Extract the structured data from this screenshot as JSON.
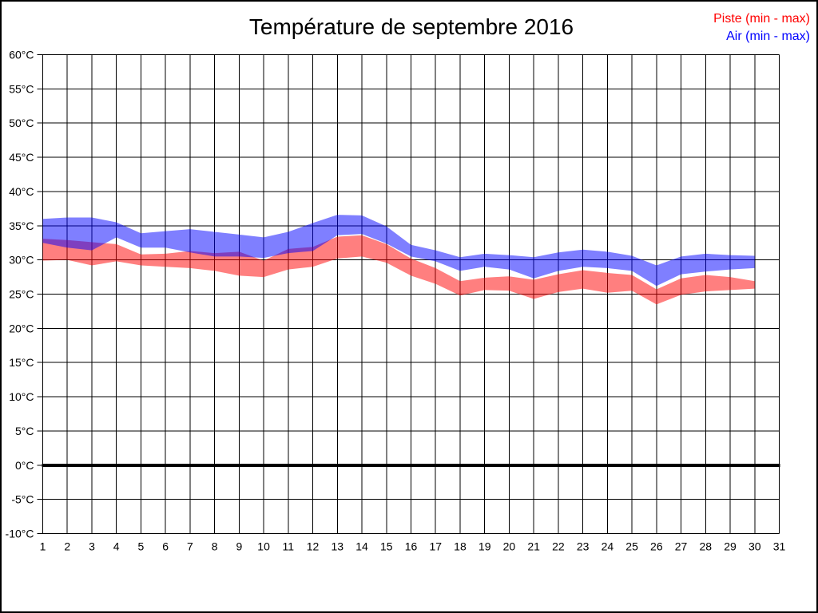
{
  "title": "Température de septembre 2016",
  "legend": {
    "piste": {
      "label": "Piste (min - max)",
      "color": "#ff0000"
    },
    "air": {
      "label": "Air (min - max)",
      "color": "#0000ff"
    }
  },
  "chart_data": {
    "type": "area",
    "subtype": "min-max-band",
    "title": "Température de septembre 2016",
    "xlabel": "",
    "ylabel": "",
    "x_min": 1,
    "x_max": 31,
    "y_min": -10,
    "y_max": 60,
    "y_step": 5,
    "grid": "on",
    "zero_line": true,
    "legend_position": "top-right",
    "x_tick_labels": [
      "1",
      "2",
      "3",
      "4",
      "5",
      "6",
      "7",
      "8",
      "9",
      "10",
      "11",
      "12",
      "13",
      "14",
      "15",
      "16",
      "17",
      "18",
      "19",
      "20",
      "21",
      "22",
      "23",
      "24",
      "25",
      "26",
      "27",
      "28",
      "29",
      "30",
      "31"
    ],
    "y_tick_labels": [
      "60°C",
      "55°C",
      "50°C",
      "45°C",
      "40°C",
      "35°C",
      "30°C",
      "25°C",
      "20°C",
      "15°C",
      "10°C",
      "5°C",
      "0°C",
      "-5°C",
      "-10°C"
    ],
    "days": [
      1,
      2,
      3,
      4,
      5,
      6,
      7,
      8,
      9,
      10,
      11,
      12,
      13,
      14,
      15,
      16,
      17,
      18,
      19,
      20,
      21,
      22,
      23,
      24,
      25,
      26,
      27,
      28,
      29,
      30
    ],
    "series": [
      {
        "name": "Piste (min - max)",
        "fill": "rgba(255,0,0,0.5)",
        "legend_color": "#ff0000",
        "max": [
          33.1,
          32.9,
          32.6,
          32.3,
          30.8,
          30.9,
          31.3,
          31.0,
          31.2,
          29.9,
          31.6,
          31.9,
          33.4,
          33.6,
          32.3,
          30.2,
          28.8,
          26.9,
          27.4,
          27.6,
          27.1,
          27.9,
          28.5,
          28.1,
          27.8,
          25.7,
          27.3,
          27.8,
          27.5,
          26.9
        ],
        "min": [
          29.9,
          30.0,
          29.2,
          29.8,
          29.2,
          29.0,
          28.8,
          28.4,
          27.7,
          27.5,
          28.6,
          29.0,
          30.2,
          30.5,
          29.6,
          27.7,
          26.5,
          24.8,
          25.6,
          25.5,
          24.3,
          25.3,
          25.8,
          25.2,
          25.5,
          23.5,
          24.9,
          25.4,
          25.6,
          25.8
        ]
      },
      {
        "name": "Air (min - max)",
        "fill": "rgba(0,0,255,0.5)",
        "legend_color": "#0000ff",
        "max": [
          36.0,
          36.2,
          36.2,
          35.5,
          33.9,
          34.2,
          34.5,
          34.1,
          33.7,
          33.3,
          34.1,
          35.4,
          36.6,
          36.5,
          34.9,
          32.2,
          31.4,
          30.4,
          30.9,
          30.7,
          30.4,
          31.1,
          31.5,
          31.2,
          30.6,
          29.2,
          30.5,
          30.9,
          30.7,
          30.6
        ],
        "min": [
          32.5,
          31.8,
          31.4,
          33.3,
          31.8,
          31.8,
          31.1,
          30.5,
          30.5,
          30.3,
          31.0,
          31.3,
          33.6,
          33.8,
          32.4,
          30.5,
          29.8,
          28.4,
          29.0,
          28.6,
          27.3,
          28.4,
          29.0,
          28.8,
          28.4,
          26.2,
          27.9,
          28.3,
          28.6,
          28.8
        ]
      }
    ]
  }
}
